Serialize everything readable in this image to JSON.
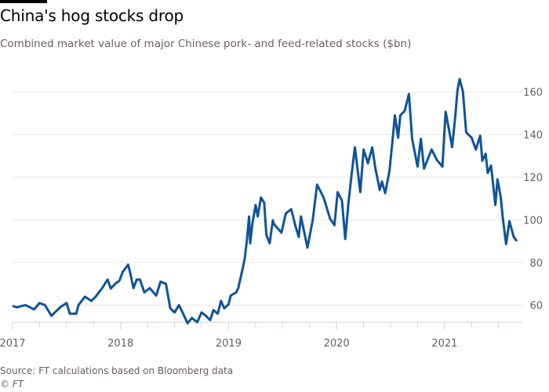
{
  "header": {
    "title": "China's hog stocks drop",
    "subtitle": "Combined market value of major Chinese pork- and feed-related stocks ($bn)"
  },
  "footer": {
    "source": "Source: FT calculations based on Bloomberg data",
    "credit": "© FT"
  },
  "colors": {
    "line": "#0f5499",
    "grid": "#ede6df",
    "axis": "#d9d2cb"
  },
  "chart_data": {
    "type": "line",
    "title": "China's hog stocks drop",
    "xlabel": "",
    "ylabel": "$bn",
    "xlim": [
      2017,
      2021.72
    ],
    "ylim": [
      52,
      170
    ],
    "grid": true,
    "y_axis_side": "right",
    "x_ticks": [
      2017,
      2018,
      2019,
      2020,
      2021
    ],
    "x_tick_labels": [
      "2017",
      "2018",
      "2019",
      "2020",
      "2021"
    ],
    "y_ticks": [
      60,
      80,
      100,
      120,
      140,
      160
    ],
    "y_tick_labels": [
      "60",
      "80",
      "100",
      "120",
      "140",
      "160"
    ],
    "series": [
      {
        "name": "Combined market value",
        "x": [
          2017.0,
          2017.04,
          2017.12,
          2017.2,
          2017.25,
          2017.3,
          2017.36,
          2017.44,
          2017.5,
          2017.53,
          2017.59,
          2017.61,
          2017.67,
          2017.73,
          2017.77,
          2017.83,
          2017.88,
          2017.91,
          2017.95,
          2017.99,
          2018.02,
          2018.07,
          2018.09,
          2018.12,
          2018.15,
          2018.18,
          2018.22,
          2018.27,
          2018.33,
          2018.37,
          2018.42,
          2018.46,
          2018.5,
          2018.54,
          2018.57,
          2018.62,
          2018.66,
          2018.71,
          2018.75,
          2018.79,
          2018.83,
          2018.86,
          2018.9,
          2018.93,
          2018.96,
          2019.0,
          2019.02,
          2019.07,
          2019.09,
          2019.13,
          2019.15,
          2019.17,
          2019.19,
          2019.2,
          2019.22,
          2019.25,
          2019.27,
          2019.3,
          2019.33,
          2019.35,
          2019.38,
          2019.41,
          2019.42,
          2019.49,
          2019.53,
          2019.58,
          2019.62,
          2019.65,
          2019.67,
          2019.73,
          2019.78,
          2019.82,
          2019.88,
          2019.94,
          2019.98,
          2020.01,
          2020.05,
          2020.08,
          2020.11,
          2020.14,
          2020.17,
          2020.22,
          2020.25,
          2020.29,
          2020.33,
          2020.36,
          2020.4,
          2020.42,
          2020.45,
          2020.49,
          2020.52,
          2020.54,
          2020.57,
          2020.59,
          2020.63,
          2020.67,
          2020.7,
          2020.75,
          2020.78,
          2020.81,
          2020.88,
          2020.93,
          2020.98,
          2021.01,
          2021.04,
          2021.07,
          2021.1,
          2021.12,
          2021.14,
          2021.17,
          2021.2,
          2021.25,
          2021.29,
          2021.33,
          2021.35,
          2021.38,
          2021.4,
          2021.43,
          2021.47,
          2021.49,
          2021.52,
          2021.54,
          2021.57,
          2021.6,
          2021.64,
          2021.67
        ],
        "values": [
          59.6,
          59,
          60,
          58,
          61,
          60,
          55,
          59,
          61,
          56,
          56,
          60,
          64,
          62,
          64,
          68,
          72,
          67.8,
          70,
          71.5,
          75.6,
          79,
          75,
          68,
          72,
          72,
          66,
          68,
          64.5,
          71,
          70,
          58.5,
          56.6,
          60,
          57,
          51.5,
          54,
          52,
          56.6,
          55,
          53,
          57.7,
          56,
          62,
          58.5,
          60.4,
          64.5,
          66,
          68,
          77,
          82,
          90.5,
          101.6,
          89,
          98,
          107,
          101.6,
          110.5,
          108,
          93,
          89,
          99.8,
          98,
          94,
          103,
          105,
          97,
          92,
          101.6,
          87,
          100,
          116.5,
          110.5,
          100.5,
          97.5,
          113,
          109,
          91,
          108,
          121.7,
          134,
          113,
          133,
          126.5,
          134,
          124,
          114,
          118,
          112.5,
          123,
          138,
          149,
          138.5,
          149,
          151,
          159,
          138,
          125,
          138,
          124,
          133,
          128,
          125,
          150.7,
          142.5,
          134,
          149,
          161,
          166,
          160,
          141,
          138.5,
          133,
          139.5,
          127.7,
          131,
          122,
          125.5,
          107,
          119,
          110.5,
          100.5,
          88.6,
          99.4,
          92,
          90
        ]
      }
    ]
  }
}
